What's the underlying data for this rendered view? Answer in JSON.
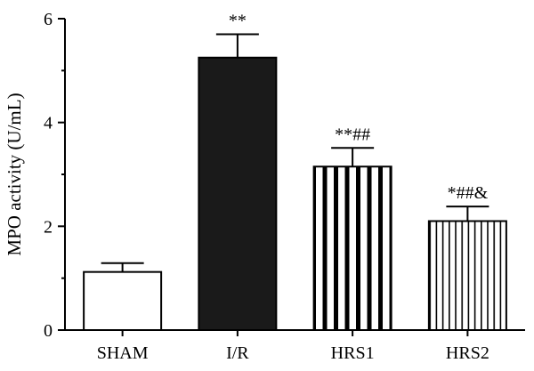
{
  "chart_data": {
    "type": "bar",
    "title": "",
    "xlabel": "",
    "ylabel": "MPO activity (U/mL)",
    "ylim": [
      0,
      6
    ],
    "yticks": [
      "0",
      "2",
      "4",
      "6"
    ],
    "grid": false,
    "categories": [
      "SHAM",
      "I/R",
      "HRS1",
      "HRS2"
    ],
    "values": [
      1.12,
      5.25,
      3.15,
      2.1
    ],
    "errors": [
      0.17,
      0.45,
      0.36,
      0.28
    ],
    "annotations": [
      "",
      "**",
      "**##",
      "*##&"
    ],
    "fills": [
      "white",
      "solid",
      "thick-vertical-stripes",
      "thin-vertical-stripes"
    ],
    "colors": {
      "bar": "#1a1a1a",
      "outline": "#000000",
      "background": "#ffffff"
    }
  }
}
